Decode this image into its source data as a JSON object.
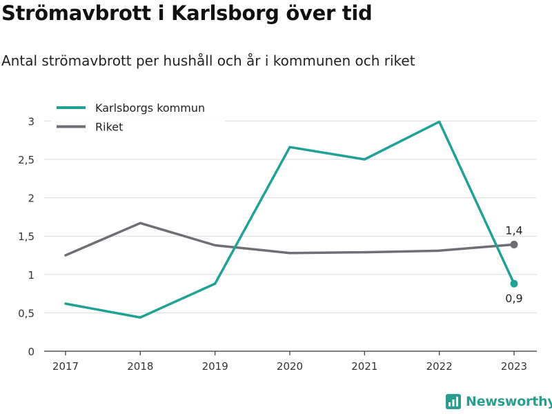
{
  "title": "Strömavbrott i Karlsborg över tid",
  "subtitle": "Antal strömavbrott per hushåll och år i kommunen och riket",
  "brand": "Newsworthy",
  "chart_data": {
    "type": "line",
    "title": "Strömavbrott i Karlsborg över tid",
    "subtitle": "Antal strömavbrott per hushåll och år i kommunen och riket",
    "xlabel": "",
    "ylabel": "",
    "x": [
      "2017",
      "2018",
      "2019",
      "2020",
      "2021",
      "2022",
      "2023"
    ],
    "ylim": [
      0,
      3.2
    ],
    "yticks": [
      0,
      0.5,
      1,
      1.5,
      2,
      2.5,
      3
    ],
    "ytick_labels": [
      "0",
      "0,5",
      "1",
      "1,5",
      "2",
      "2,5",
      "3"
    ],
    "grid": true,
    "legend_position": "top-left",
    "series": [
      {
        "name": "Karlsborgs kommun",
        "color": "#1fa195",
        "values": [
          0.62,
          0.44,
          0.88,
          2.66,
          2.5,
          2.99,
          0.88
        ],
        "end_label": "0,9",
        "end_label_position": "below"
      },
      {
        "name": "Riket",
        "color": "#6e6e74",
        "values": [
          1.25,
          1.67,
          1.38,
          1.28,
          1.29,
          1.31,
          1.39
        ],
        "end_label": "1,4",
        "end_label_position": "above"
      }
    ]
  }
}
